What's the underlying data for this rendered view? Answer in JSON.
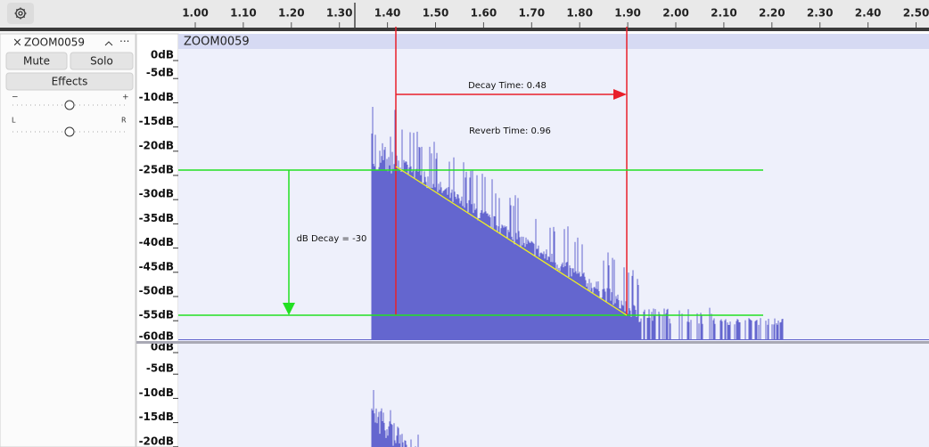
{
  "ruler": {
    "ticks": [
      "1.00",
      "1.10",
      "1.20",
      "1.30",
      "1.40",
      "1.50",
      "1.60",
      "1.70",
      "1.80",
      "1.90",
      "2.00",
      "2.10",
      "2.20",
      "2.30",
      "2.40",
      "2.50"
    ]
  },
  "track": {
    "name": "ZOOM0059",
    "mute": "Mute",
    "solo": "Solo",
    "effects": "Effects",
    "gain_min": "−",
    "gain_max": "+",
    "pan_left": "L",
    "pan_right": "R"
  },
  "waveform": {
    "clip_name": "ZOOM0059",
    "channel1_scale": [
      "0dB",
      "-5dB",
      "-10dB",
      "-15dB",
      "-20dB",
      "-25dB",
      "-30dB",
      "-35dB",
      "-40dB",
      "-45dB",
      "-50dB",
      "-55dB",
      "-60dB"
    ],
    "channel2_scale": [
      "0dB",
      "-5dB",
      "-10dB",
      "-15dB",
      "-20dB"
    ]
  },
  "annotations": {
    "decay_time": "Decay Time: 0.48",
    "reverb_time": "Reverb Time: 0.96",
    "db_decay": "dB Decay = -30"
  }
}
